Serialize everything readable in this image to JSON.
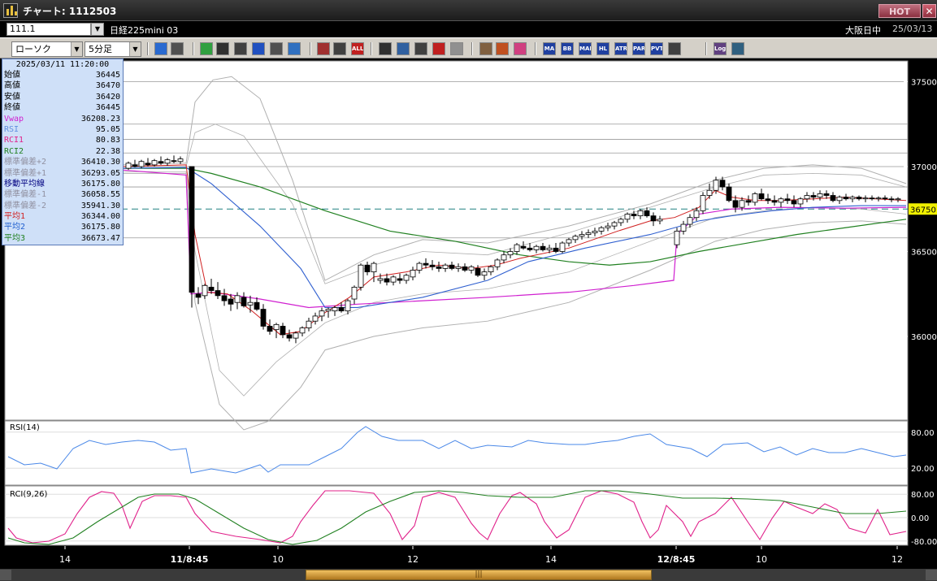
{
  "window": {
    "title": "チャート: 1112503",
    "hot_label": "HOT",
    "close_label": "✕"
  },
  "infobar": {
    "code": "111.1",
    "instrument": "日経225mini 03",
    "market": "大阪日中",
    "date": "25/03/13"
  },
  "toolbar": {
    "chart_type": "ローソク",
    "interval": "5分足",
    "icons": [
      {
        "name": "zoom-icon",
        "label": ""
      },
      {
        "name": "crosshair-icon",
        "label": ""
      },
      {
        "name": "pencil-icon",
        "label": ""
      },
      {
        "name": "draw-icon",
        "label": ""
      },
      {
        "name": "cursor-icon",
        "label": ""
      },
      {
        "name": "undo-icon",
        "label": ""
      },
      {
        "name": "notes-icon",
        "label": ""
      },
      {
        "name": "trash-icon",
        "label": ""
      },
      {
        "name": "candle-a-icon",
        "label": ""
      },
      {
        "name": "candle-b-icon",
        "label": ""
      },
      {
        "name": "all-icon",
        "label": "ALL"
      },
      {
        "name": "heart-icon",
        "label": ""
      },
      {
        "name": "search-zoom-icon",
        "label": ""
      },
      {
        "name": "sum-icon",
        "label": ""
      },
      {
        "name": "cross-icon",
        "label": ""
      },
      {
        "name": "disabled-icon",
        "label": ""
      },
      {
        "name": "grid-settings-icon",
        "label": ""
      },
      {
        "name": "wrench-icon",
        "label": ""
      },
      {
        "name": "color-icon",
        "label": ""
      },
      {
        "name": "ma-icon",
        "label": "MA"
      },
      {
        "name": "bb-icon",
        "label": "BB"
      },
      {
        "name": "mae-icon",
        "label": "MAE"
      },
      {
        "name": "hl-icon",
        "label": "HL"
      },
      {
        "name": "atr-icon",
        "label": "ATR"
      },
      {
        "name": "par-icon",
        "label": "PAR"
      },
      {
        "name": "pvt-icon",
        "label": "PVT"
      },
      {
        "name": "box-icon",
        "label": ""
      },
      {
        "name": "log-icon",
        "label": "Log"
      },
      {
        "name": "window-icon",
        "label": ""
      }
    ]
  },
  "datapanel": {
    "datetime": "2025/03/11  11:20:00",
    "rows": [
      {
        "k": "始値",
        "v": "36445",
        "color": "#000000"
      },
      {
        "k": "高値",
        "v": "36470",
        "color": "#000000"
      },
      {
        "k": "安値",
        "v": "36420",
        "color": "#000000"
      },
      {
        "k": "終値",
        "v": "36445",
        "color": "#000000"
      },
      {
        "k": "Vwap",
        "v": "36208.23",
        "color": "#d020d0"
      },
      {
        "k": "RSI",
        "v": "95.05",
        "color": "#6090e0"
      },
      {
        "k": "RCI1",
        "v": "80.83",
        "color": "#e0208a"
      },
      {
        "k": "RCI2",
        "v": "22.38",
        "color": "#208020"
      },
      {
        "k": "標準偏差+2",
        "v": "36410.30",
        "color": "#9090a0"
      },
      {
        "k": "標準偏差+1",
        "v": "36293.05",
        "color": "#9090a0"
      },
      {
        "k": "移動平均線",
        "v": "36175.80",
        "color": "#000080"
      },
      {
        "k": "標準偏差-1",
        "v": "36058.55",
        "color": "#9090a0"
      },
      {
        "k": "標準偏差-2",
        "v": "35941.30",
        "color": "#9090a0"
      },
      {
        "k": "平均1",
        "v": "36344.00",
        "color": "#d02020"
      },
      {
        "k": "平均2",
        "v": "36175.80",
        "color": "#2060d0"
      },
      {
        "k": "平均3",
        "v": "36673.47",
        "color": "#208020"
      }
    ]
  },
  "price_axis": {
    "ticks": [
      "37500",
      "37000",
      "36500",
      "36000"
    ],
    "current": "36750"
  },
  "rsi_panel": {
    "label": "RSI(14)",
    "ticks": [
      "80.00",
      "20.00"
    ]
  },
  "rci_panel": {
    "label": "RCI(9,26)",
    "ticks": [
      "80.00",
      "0.00",
      "-80.00"
    ]
  },
  "time_axis": {
    "labels": [
      "14",
      "11/8:45",
      "10",
      "12",
      "14",
      "12/8:45",
      "10",
      "12"
    ]
  },
  "scroll": {
    "thumb_label": "|||"
  },
  "colors": {
    "bg": "#ffffff",
    "bb_band": "#b0b0b0",
    "ma": "#3060d0",
    "short_ma": "#d02020",
    "long_ma": "#208020",
    "vwap": "#d020d0",
    "rsi": "#4a88e8",
    "rci1": "#e0208a",
    "rci2": "#208020",
    "current_price_bg": "#f0f000"
  }
}
